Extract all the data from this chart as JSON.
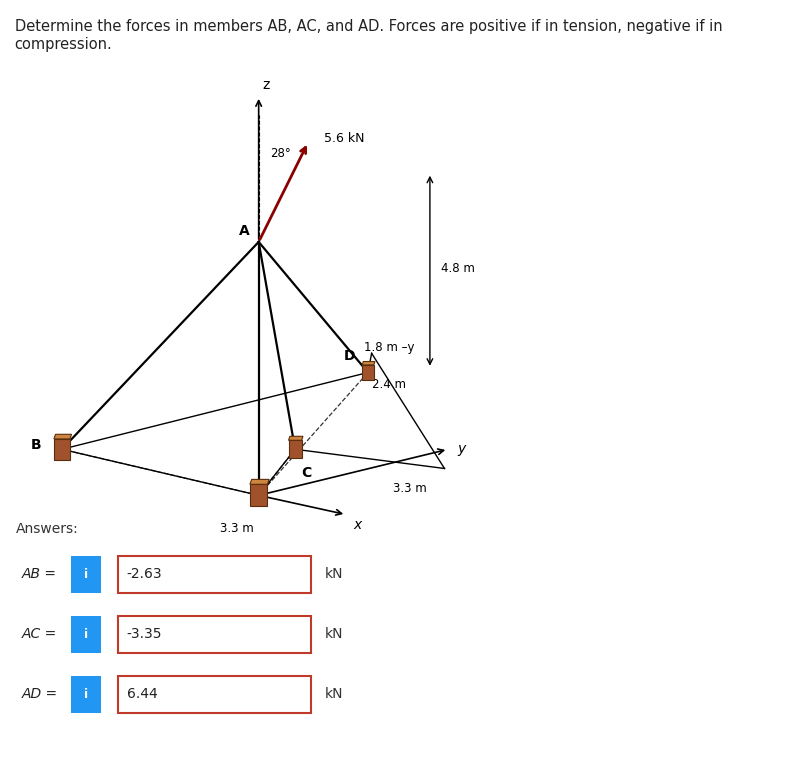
{
  "title": "Determine the forces in members AB, AC, and AD. Forces are positive if in tension, negative if in compression.",
  "title_fontsize": 10.5,
  "background_color": "#ffffff",
  "diagram": {
    "force_label": "5.6 kN",
    "force_angle_label": "28°",
    "dim_48": "4.8 m",
    "dim_18": "1.8 m",
    "dim_24": "2.4 m",
    "dim_33a": "3.3 m",
    "dim_33b": "3.3 m"
  },
  "answers": {
    "label": "Answers:",
    "AB_label": "AB =",
    "AB_value": "-2.63",
    "AC_label": "AC =",
    "AC_value": "-3.35",
    "AD_label": "AD =",
    "AD_value": "6.44",
    "unit": "kN",
    "info_color": "#2196F3",
    "box_border_color": "#c0392b",
    "box_bg": "#ffffff"
  }
}
